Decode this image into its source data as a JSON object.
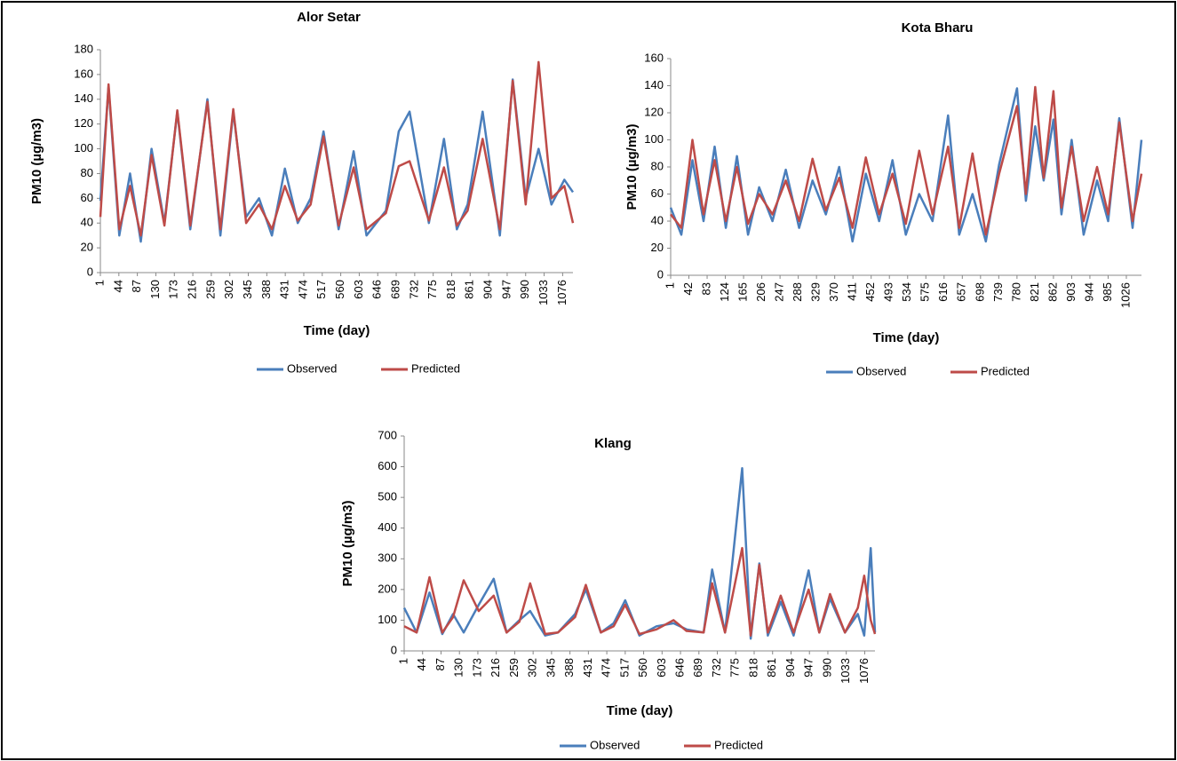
{
  "chart_data": [
    {
      "type": "line",
      "title": "Alor Setar",
      "xlabel": "Time (day)",
      "ylabel": "PM10 (µg/m3)",
      "xlim": [
        1,
        1100
      ],
      "xticks": [
        1,
        44,
        87,
        130,
        173,
        216,
        259,
        302,
        345,
        388,
        431,
        474,
        517,
        560,
        603,
        646,
        689,
        732,
        775,
        818,
        861,
        904,
        947,
        990,
        1033,
        1076
      ],
      "ylim": [
        0,
        180
      ],
      "yticks": [
        0,
        20,
        40,
        60,
        80,
        100,
        120,
        140,
        160,
        180
      ],
      "x": [
        1,
        20,
        45,
        70,
        95,
        120,
        150,
        180,
        210,
        250,
        280,
        310,
        340,
        370,
        400,
        430,
        460,
        490,
        520,
        555,
        590,
        620,
        665,
        695,
        720,
        765,
        800,
        830,
        855,
        890,
        930,
        960,
        990,
        1020,
        1050,
        1080,
        1100
      ],
      "series": [
        {
          "name": "Observed",
          "color": "#4a7ebb",
          "values": [
            58,
            150,
            30,
            80,
            25,
            100,
            40,
            130,
            35,
            140,
            30,
            130,
            45,
            60,
            30,
            84,
            40,
            60,
            114,
            35,
            98,
            30,
            50,
            114,
            130,
            40,
            108,
            35,
            55,
            130,
            30,
            156,
            60,
            100,
            55,
            75,
            65
          ]
        },
        {
          "name": "Predicted",
          "color": "#be4b48",
          "values": [
            45,
            152,
            35,
            70,
            30,
            95,
            38,
            131,
            38,
            138,
            35,
            132,
            40,
            55,
            35,
            70,
            42,
            55,
            110,
            38,
            85,
            35,
            48,
            86,
            90,
            42,
            85,
            38,
            50,
            108,
            35,
            155,
            55,
            170,
            60,
            70,
            40
          ]
        }
      ]
    },
    {
      "type": "line",
      "title": "Kota Bharu",
      "xlabel": "Time (day)",
      "ylabel": "PM10 (µg/m3)",
      "xlim": [
        1,
        1060
      ],
      "xticks": [
        1,
        42,
        83,
        124,
        165,
        206,
        247,
        288,
        329,
        370,
        411,
        452,
        493,
        534,
        575,
        616,
        657,
        698,
        739,
        780,
        821,
        862,
        903,
        944,
        985,
        1026
      ],
      "ylim": [
        0,
        160
      ],
      "yticks": [
        0,
        20,
        40,
        60,
        80,
        100,
        120,
        140,
        160
      ],
      "x": [
        1,
        25,
        50,
        75,
        100,
        125,
        150,
        175,
        200,
        230,
        260,
        290,
        320,
        350,
        380,
        410,
        440,
        470,
        500,
        530,
        560,
        590,
        625,
        650,
        680,
        710,
        740,
        780,
        800,
        821,
        840,
        862,
        880,
        903,
        930,
        960,
        985,
        1010,
        1040,
        1060
      ],
      "series": [
        {
          "name": "Observed",
          "color": "#4a7ebb",
          "values": [
            50,
            30,
            85,
            40,
            95,
            35,
            88,
            30,
            65,
            40,
            78,
            35,
            70,
            45,
            80,
            25,
            75,
            40,
            85,
            30,
            60,
            40,
            118,
            30,
            60,
            25,
            82,
            138,
            55,
            110,
            70,
            115,
            45,
            100,
            30,
            70,
            40,
            116,
            35,
            100
          ]
        },
        {
          "name": "Predicted",
          "color": "#be4b48",
          "values": [
            45,
            35,
            100,
            45,
            85,
            40,
            80,
            38,
            60,
            45,
            70,
            40,
            86,
            48,
            72,
            35,
            87,
            45,
            75,
            38,
            92,
            45,
            95,
            35,
            90,
            30,
            75,
            125,
            60,
            139,
            72,
            136,
            50,
            95,
            40,
            80,
            45,
            113,
            40,
            75
          ]
        }
      ]
    },
    {
      "type": "line",
      "title": "Klang",
      "xlabel": "Time (day)",
      "ylabel": "PM10 (µg/m3)",
      "xlim": [
        1,
        1100
      ],
      "xticks": [
        1,
        44,
        87,
        130,
        173,
        216,
        259,
        302,
        345,
        388,
        431,
        474,
        517,
        560,
        603,
        646,
        689,
        732,
        775,
        818,
        861,
        904,
        947,
        990,
        1033,
        1076
      ],
      "ylim": [
        0,
        700
      ],
      "yticks": [
        0,
        100,
        200,
        300,
        400,
        500,
        600,
        700
      ],
      "x": [
        1,
        30,
        60,
        90,
        115,
        140,
        175,
        210,
        240,
        270,
        295,
        330,
        360,
        400,
        425,
        460,
        490,
        517,
        550,
        590,
        630,
        660,
        700,
        720,
        750,
        790,
        810,
        830,
        850,
        880,
        910,
        945,
        970,
        995,
        1030,
        1060,
        1075,
        1090,
        1100
      ],
      "series": [
        {
          "name": "Observed",
          "color": "#4a7ebb",
          "values": [
            140,
            60,
            190,
            55,
            120,
            60,
            150,
            235,
            60,
            100,
            130,
            50,
            60,
            120,
            200,
            60,
            90,
            165,
            50,
            80,
            90,
            70,
            60,
            265,
            60,
            595,
            40,
            285,
            50,
            160,
            50,
            262,
            60,
            170,
            60,
            120,
            50,
            335,
            60
          ]
        },
        {
          "name": "Predicted",
          "color": "#be4b48",
          "values": [
            80,
            60,
            240,
            60,
            110,
            230,
            130,
            180,
            60,
            95,
            220,
            55,
            60,
            110,
            215,
            60,
            80,
            150,
            55,
            70,
            100,
            65,
            60,
            220,
            60,
            335,
            50,
            280,
            60,
            180,
            60,
            200,
            60,
            185,
            60,
            140,
            245,
            100,
            55
          ]
        }
      ]
    }
  ]
}
